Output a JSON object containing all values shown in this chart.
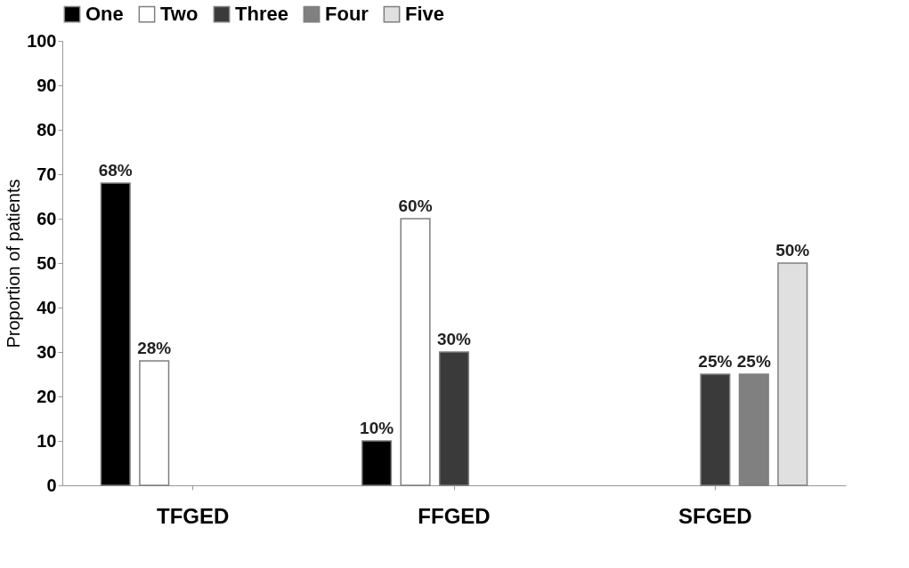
{
  "chart_data": {
    "type": "bar",
    "ylabel": "Proportion of patients",
    "categories": [
      "TFGED",
      "FFGED",
      "SFGED"
    ],
    "series": [
      {
        "name": "One",
        "color": "#000000",
        "values": [
          68,
          10,
          null
        ],
        "value_labels": [
          "68%",
          "10%",
          null
        ]
      },
      {
        "name": "Two",
        "color": "#ffffff",
        "values": [
          28,
          60,
          null
        ],
        "value_labels": [
          "28%",
          "60%",
          null
        ]
      },
      {
        "name": "Three",
        "color": "#3a3a3a",
        "values": [
          null,
          30,
          25
        ],
        "value_labels": [
          null,
          "30%",
          "25%"
        ]
      },
      {
        "name": "Four",
        "color": "#808080",
        "values": [
          null,
          null,
          25
        ],
        "value_labels": [
          null,
          null,
          "25%"
        ]
      },
      {
        "name": "Five",
        "color": "#e0e0e0",
        "values": [
          null,
          null,
          50
        ],
        "value_labels": [
          null,
          null,
          "50%"
        ]
      }
    ],
    "ylim": [
      0,
      100
    ],
    "yticks": [
      0,
      10,
      20,
      30,
      40,
      50,
      60,
      70,
      80,
      90,
      100
    ],
    "grid": false,
    "legend": "top"
  }
}
